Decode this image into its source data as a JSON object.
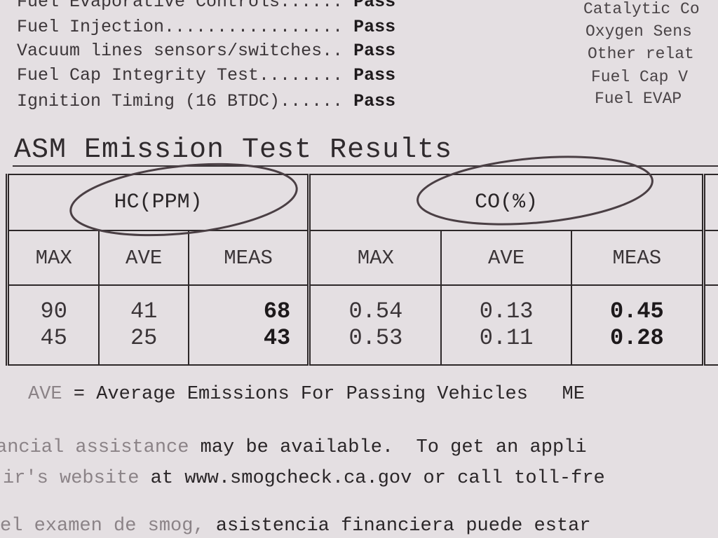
{
  "checks": [
    {
      "label": "Fuel Evaporative Controls......",
      "result": "Pass"
    },
    {
      "label": "Fuel Injection.................",
      "result": "Pass"
    },
    {
      "label": "Vacuum lines sensors/switches..",
      "result": "Pass"
    },
    {
      "label": "Fuel Cap Integrity Test........",
      "result": "Pass"
    },
    {
      "label": "Ignition Timing (16 BTDC)......",
      "result": "Pass"
    }
  ],
  "right_column": [
    "Catalytic Co",
    "Oxygen Sens",
    "Other relat",
    "Fuel Cap V",
    "Fuel EVAP"
  ],
  "section_title": "ASM Emission Test Results",
  "table": {
    "groups": [
      "HC(PPM)",
      "CO(%)"
    ],
    "columns": [
      "MAX",
      "AVE",
      "MEAS",
      "MAX",
      "AVE",
      "MEAS"
    ],
    "rows": [
      [
        "90",
        "41",
        "68",
        "0.54",
        "0.13",
        "0.45"
      ],
      [
        "45",
        "25",
        "43",
        "0.53",
        "0.11",
        "0.28"
      ]
    ]
  },
  "legend": {
    "abbr": "AVE",
    "text": " = Average Emissions For Passing Vehicles",
    "trailing": "ME"
  },
  "paragraph": {
    "line1_faint": "ancial assistance",
    "line1": " may be available.  To get an appli",
    "line2_faint": "ir's website",
    "line2": " at www.smogcheck.ca.gov or call toll-fre",
    "line3_faint": "el examen de smog,",
    "line3": " asistencia financiera puede estar"
  },
  "colors": {
    "paper": "#e4dfe2",
    "ink": "#2a2628",
    "pencil": "#4a3f44"
  }
}
